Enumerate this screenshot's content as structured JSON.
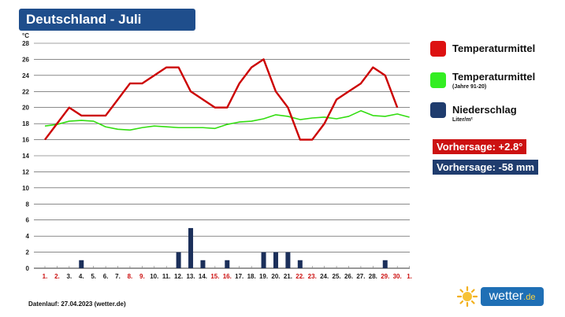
{
  "header": {
    "title": "Deutschland - Juli"
  },
  "chart_data": {
    "type": "line",
    "unit_label": "°C",
    "ylim": [
      0,
      28
    ],
    "y_ticks": [
      0,
      2,
      4,
      6,
      8,
      10,
      12,
      14,
      16,
      18,
      20,
      22,
      24,
      26,
      28
    ],
    "grid": true,
    "x_labels": [
      "1.",
      "2.",
      "3.",
      "4.",
      "5.",
      "6.",
      "7.",
      "8.",
      "9.",
      "10.",
      "11.",
      "12.",
      "13.",
      "14.",
      "15.",
      "16.",
      "17.",
      "18.",
      "19.",
      "20.",
      "21.",
      "22.",
      "23.",
      "24.",
      "25.",
      "26.",
      "27.",
      "28.",
      "29.",
      "30.",
      "1."
    ],
    "x_label_colors": [
      "#cc1111",
      "#cc1111",
      "#1a1a1a",
      "#1a1a1a",
      "#1a1a1a",
      "#1a1a1a",
      "#1a1a1a",
      "#cc1111",
      "#cc1111",
      "#1a1a1a",
      "#1a1a1a",
      "#1a1a1a",
      "#1a1a1a",
      "#1a1a1a",
      "#cc1111",
      "#cc1111",
      "#1a1a1a",
      "#1a1a1a",
      "#1a1a1a",
      "#1a1a1a",
      "#1a1a1a",
      "#cc1111",
      "#cc1111",
      "#1a1a1a",
      "#1a1a1a",
      "#1a1a1a",
      "#1a1a1a",
      "#1a1a1a",
      "#cc1111",
      "#cc1111",
      "#cc1111"
    ],
    "series": [
      {
        "name": "Temperaturmittel",
        "type": "line",
        "color": "#cc0000",
        "values": [
          16,
          18,
          20,
          19,
          19,
          19,
          21,
          23,
          23,
          24,
          25,
          25,
          22,
          21,
          20,
          20,
          23,
          25,
          26,
          22,
          20,
          16,
          16,
          18,
          21,
          22,
          23,
          25,
          24,
          20
        ]
      },
      {
        "name": "Temperaturmittel",
        "subtitle": "(Jahre 91-20)",
        "type": "line",
        "color": "#33dd11",
        "values": [
          17.7,
          17.9,
          18.3,
          18.4,
          18.3,
          17.6,
          17.3,
          17.2,
          17.5,
          17.7,
          17.6,
          17.5,
          17.5,
          17.5,
          17.4,
          17.9,
          18.2,
          18.3,
          18.6,
          19.1,
          18.9,
          18.5,
          18.7,
          18.8,
          18.6,
          18.9,
          19.6,
          19.0,
          18.9,
          19.2,
          18.8
        ]
      },
      {
        "name": "Niederschlag",
        "subtitle": "Liter/m²",
        "type": "bar",
        "color": "#1b2f5a",
        "values": [
          0,
          0,
          0,
          1,
          0,
          0,
          0,
          0,
          0,
          0,
          0,
          2,
          5,
          1,
          0,
          1,
          0,
          0,
          2,
          2,
          2,
          1,
          0,
          0,
          0,
          0,
          0,
          0,
          1,
          0
        ]
      }
    ]
  },
  "legend": {
    "items": [
      {
        "label": "Temperaturmittel",
        "sub": "",
        "color": "#dd1111"
      },
      {
        "label": "Temperaturmittel",
        "sub": "(Jahre 91-20)",
        "color": "#33ee22"
      },
      {
        "label": "Niederschlag",
        "sub": "Liter/m²",
        "color": "#1f3c6e"
      }
    ]
  },
  "forecast": {
    "temp": {
      "text": "Vorhersage: +2.8°",
      "color": "#cc1111"
    },
    "rain": {
      "text": "Vorhersage: -58 mm",
      "color": "#1f3c6e"
    }
  },
  "footer": {
    "text": "Datenlauf: 27.04.2023 (wetter.de)"
  },
  "brand": {
    "name": "wetter",
    "tld": ".de",
    "icon": "sun-icon"
  }
}
